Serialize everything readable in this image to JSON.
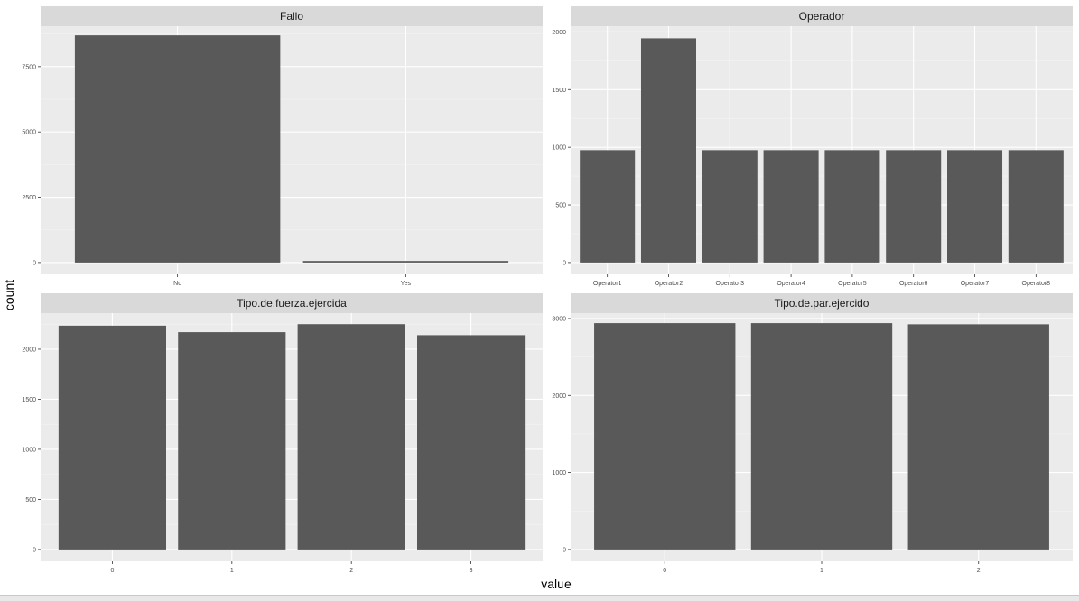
{
  "chart_data": [
    {
      "type": "bar",
      "title": "Fallo",
      "categories": [
        "No",
        "Yes"
      ],
      "values": [
        8700,
        60
      ],
      "ylim": [
        0,
        9050
      ],
      "yticks": [
        0,
        2500,
        5000,
        7500
      ],
      "xlabel": "",
      "ylabel": ""
    },
    {
      "type": "bar",
      "title": "Operador",
      "categories": [
        "Operator1",
        "Operator2",
        "Operator3",
        "Operator4",
        "Operator5",
        "Operator6",
        "Operator7",
        "Operator8"
      ],
      "values": [
        975,
        1945,
        975,
        975,
        975,
        975,
        975,
        975
      ],
      "ylim": [
        0,
        2050
      ],
      "yticks": [
        0,
        500,
        1000,
        1500,
        2000
      ],
      "xlabel": "",
      "ylabel": ""
    },
    {
      "type": "bar",
      "title": "Tipo.de.fuerza.ejercida",
      "categories": [
        "0",
        "1",
        "2",
        "3"
      ],
      "values": [
        2235,
        2170,
        2250,
        2140
      ],
      "ylim": [
        0,
        2360
      ],
      "yticks": [
        0,
        500,
        1000,
        1500,
        2000
      ],
      "xlabel": "",
      "ylabel": ""
    },
    {
      "type": "bar",
      "title": "Tipo.de.par.ejercido",
      "categories": [
        "0",
        "1",
        "2"
      ],
      "values": [
        2940,
        2940,
        2925
      ],
      "ylim": [
        0,
        3070
      ],
      "yticks": [
        0,
        1000,
        2000,
        3000
      ],
      "xlabel": "",
      "ylabel": ""
    }
  ],
  "axes": {
    "xlabel": "value",
    "ylabel": "count"
  },
  "colors": {
    "bar": "#595959",
    "panel_bg": "#ebebeb",
    "strip_bg": "#d9d9d9",
    "grid_major": "#ffffff",
    "grid_minor": "#f4f4f4"
  }
}
